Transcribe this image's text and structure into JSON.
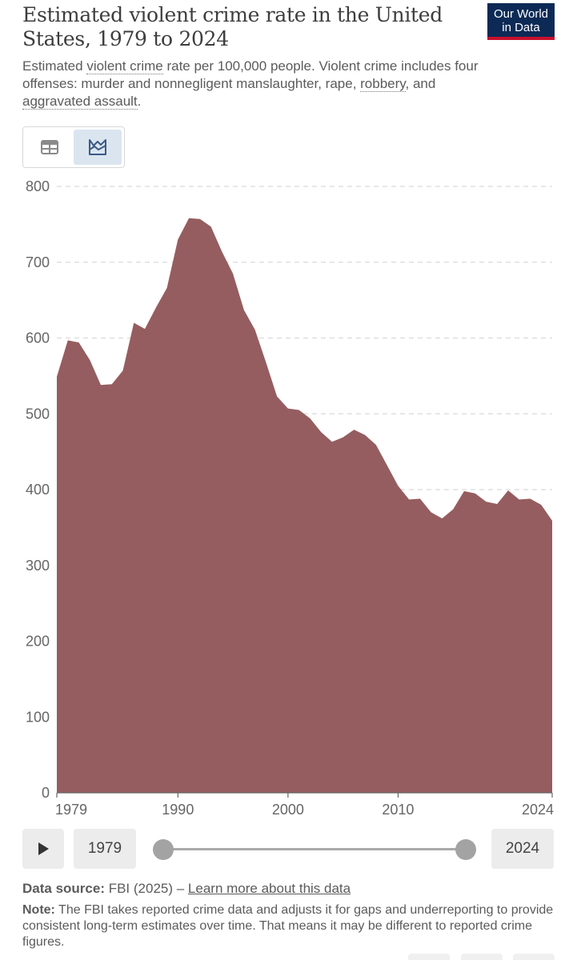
{
  "header": {
    "title": "Estimated violent crime rate in the United States, 1979 to 2024",
    "logo_line1": "Our World",
    "logo_line2": "in Data",
    "subtitle_part1": "Estimated ",
    "subtitle_link1": "violent crime",
    "subtitle_part2": " rate per 100,000 people. Violent crime includes four offenses: murder and nonnegligent manslaughter, rape, ",
    "subtitle_link2": "robbery",
    "subtitle_part3": ", and ",
    "subtitle_link3": "aggravated assault",
    "subtitle_part4": "."
  },
  "view_toggle": {
    "options": [
      "table-icon",
      "chart-icon"
    ],
    "selected": "chart"
  },
  "colors": {
    "area": "#955d5f",
    "grid": "#d9d9d9",
    "brand": "#0d2a56",
    "brand_accent": "#c8102e"
  },
  "chart_data": {
    "type": "area",
    "x": [
      1979,
      1980,
      1981,
      1982,
      1983,
      1984,
      1985,
      1986,
      1987,
      1988,
      1989,
      1990,
      1991,
      1992,
      1993,
      1994,
      1995,
      1996,
      1997,
      1998,
      1999,
      2000,
      2001,
      2002,
      2003,
      2004,
      2005,
      2006,
      2007,
      2008,
      2009,
      2010,
      2011,
      2012,
      2013,
      2014,
      2015,
      2016,
      2017,
      2018,
      2019,
      2020,
      2021,
      2022,
      2023,
      2024
    ],
    "y": [
      549,
      597,
      594,
      571,
      538,
      539,
      557,
      620,
      612,
      640,
      666,
      730,
      758,
      757,
      747,
      714,
      685,
      637,
      611,
      568,
      523,
      507,
      505,
      494,
      476,
      463,
      469,
      479,
      472,
      459,
      432,
      405,
      387,
      388,
      370,
      362,
      374,
      398,
      395,
      384,
      381,
      399,
      387,
      388,
      380,
      359
    ],
    "ylim": [
      0,
      800
    ],
    "yticks": [
      "0",
      "100",
      "200",
      "300",
      "400",
      "500",
      "600",
      "700",
      "800"
    ],
    "xticks": [
      "1979",
      "1990",
      "2000",
      "2010",
      "2024"
    ],
    "xtick_values": [
      1979,
      1990,
      2000,
      2010,
      2024
    ],
    "grid": true
  },
  "timeline": {
    "start_label": "1979",
    "end_label": "2024",
    "play_icon": "play-icon"
  },
  "source": {
    "label": "Data source:",
    "text": " FBI (2025) – ",
    "link": "Learn more about this data"
  },
  "note": {
    "label": "Note:",
    "text": " The FBI takes reported crime data and adjusts it for gaps and underreporting to provide consistent long-term estimates over time. That means it may be different to reported crime figures."
  }
}
